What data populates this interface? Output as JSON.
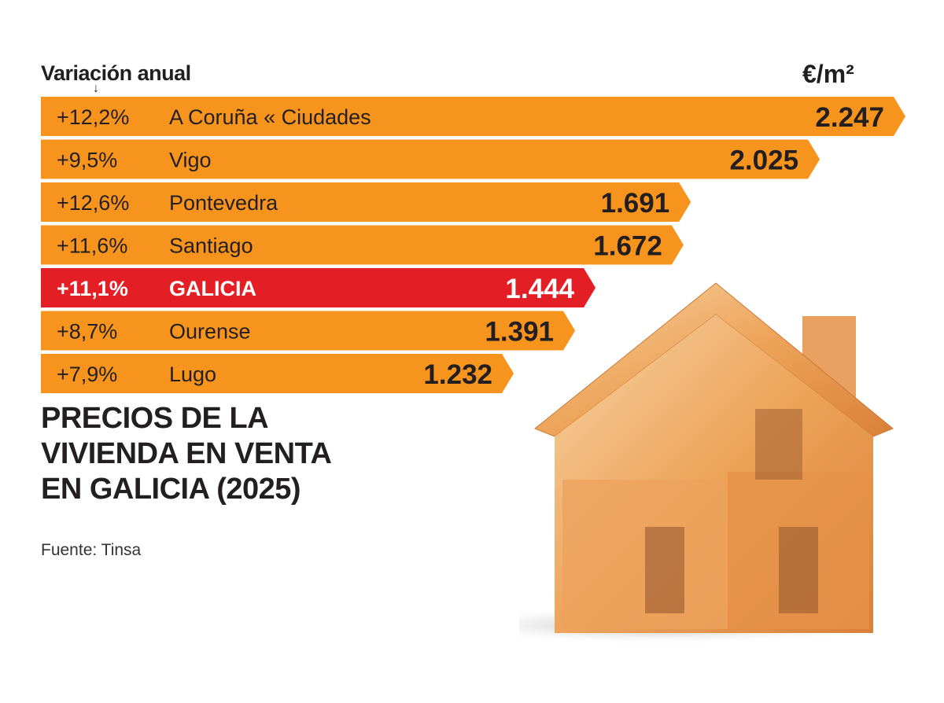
{
  "header": {
    "left_label": "Variación anual",
    "right_label": "€/m²"
  },
  "title_lines": [
    "PRECIOS DE LA",
    "VIVIENDA EN VENTA",
    "EN GALICIA (2025)"
  ],
  "source": "Fuente: Tinsa",
  "colors": {
    "bar": "#f7941d",
    "highlight": "#e31e24",
    "text": "#231f20",
    "highlight_text": "#ffffff"
  },
  "chart_data": {
    "type": "bar",
    "orientation": "horizontal",
    "title": "PRECIOS DE LA VIVIENDA EN VENTA EN GALICIA (2025)",
    "unit": "€/m²",
    "categories": [
      "A Coruña « Ciudades",
      "Vigo",
      "Pontevedra",
      "Santiago",
      "GALICIA",
      "Ourense",
      "Lugo"
    ],
    "values": [
      2247,
      2025,
      1691,
      1672,
      1444,
      1391,
      1232
    ],
    "value_labels": [
      "2.247",
      "2.025",
      "1.691",
      "1.672",
      "1.444",
      "1.391",
      "1.232"
    ],
    "annual_variation": [
      "+12,2%",
      "+9,5%",
      "+12,6%",
      "+11,6%",
      "+11,1%",
      "+8,7%",
      "+7,9%"
    ],
    "highlight": "GALICIA",
    "grid": false
  }
}
